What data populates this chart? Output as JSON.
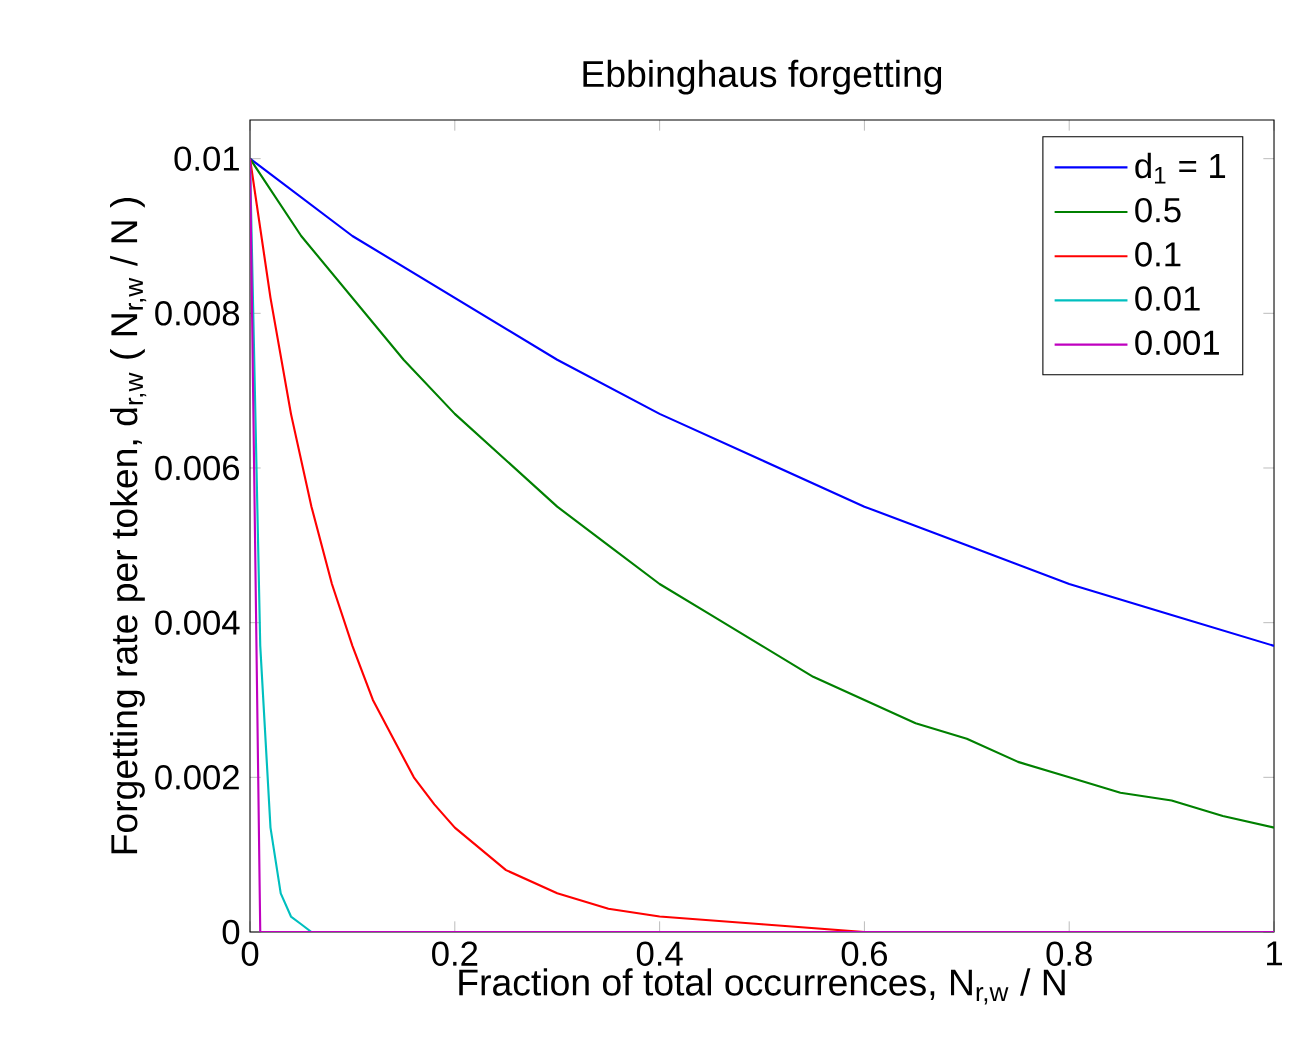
{
  "chart_data": {
    "type": "line",
    "title": "Ebbinghaus forgetting",
    "xlabel": "Fraction of total occurrences, N$_{r,w}$ / N",
    "ylabel": "Forgetting rate per token, d$_{r,w}$ ( N$_{r,w}$ / N )",
    "series": [
      {
        "name": "d$_{1}$ = 1",
        "color": "#0000ff",
        "x": [
          0,
          0.1,
          0.2,
          0.3,
          0.4,
          0.5,
          0.6,
          0.7,
          0.8,
          0.9,
          1
        ],
        "values": [
          0.01,
          0.009,
          0.0082,
          0.0074,
          0.0067,
          0.0061,
          0.0055,
          0.005,
          0.0045,
          0.0041,
          0.0037
        ]
      },
      {
        "name": "0.5",
        "color": "#008000",
        "x": [
          0,
          0.05,
          0.1,
          0.15,
          0.2,
          0.25,
          0.3,
          0.35,
          0.4,
          0.45,
          0.5,
          0.55,
          0.6,
          0.65,
          0.7,
          0.75,
          0.8,
          0.85,
          0.9,
          0.95,
          1
        ],
        "values": [
          0.01,
          0.009,
          0.0082,
          0.0074,
          0.0067,
          0.0061,
          0.0055,
          0.005,
          0.0045,
          0.0041,
          0.0037,
          0.0033,
          0.003,
          0.0027,
          0.0025,
          0.0022,
          0.002,
          0.0018,
          0.0017,
          0.0015,
          0.00135
        ]
      },
      {
        "name": "0.1",
        "color": "#ff0000",
        "x": [
          0,
          0.02,
          0.04,
          0.06,
          0.08,
          0.1,
          0.12,
          0.14,
          0.16,
          0.18,
          0.2,
          0.25,
          0.3,
          0.35,
          0.4,
          0.5,
          0.6
        ],
        "values": [
          0.01,
          0.0082,
          0.0067,
          0.0055,
          0.0045,
          0.0037,
          0.003,
          0.0025,
          0.002,
          0.00165,
          0.00135,
          0.0008,
          0.0005,
          0.0003,
          0.0002,
          0.0001,
          0
        ]
      },
      {
        "name": "0.01",
        "color": "#00bfbf",
        "x": [
          0,
          0.01,
          0.02,
          0.03,
          0.04,
          0.05,
          0.06
        ],
        "values": [
          0.01,
          0.0037,
          0.00135,
          0.0005,
          0.0002,
          0.0001,
          0
        ]
      },
      {
        "name": "0.001",
        "color": "#bf00bf",
        "x": [
          0,
          0.01,
          1
        ],
        "values": [
          0.01,
          0,
          0
        ]
      }
    ],
    "xlim": [
      0,
      1
    ],
    "ylim": [
      0,
      0.0105
    ],
    "xticks": [
      0,
      0.2,
      0.4,
      0.6,
      0.8,
      1
    ],
    "yticks": [
      0,
      0.002,
      0.004,
      0.006,
      0.008,
      0.01
    ],
    "grid": false,
    "legend": "top right",
    "marker": "none",
    "line_style": "solid"
  }
}
